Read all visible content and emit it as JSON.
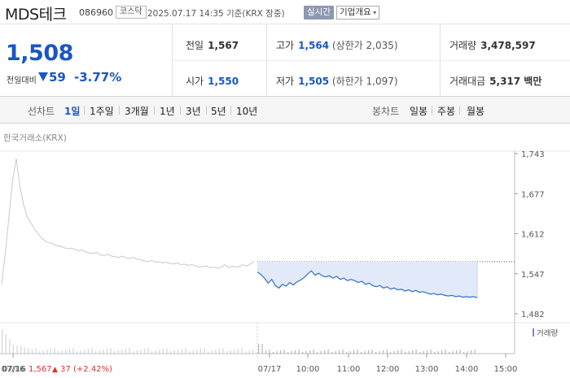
{
  "header": {
    "name": "MDS테크",
    "code": "086960",
    "market": "코스닥",
    "timestamp": "2025.07.17 14:35 기준(KRX 장중)",
    "realtime_label": "실시간",
    "company_label": "기업개요"
  },
  "price": {
    "current": "1,508",
    "diff_label": "전일대비",
    "diff": "59",
    "rate": "-3.77%"
  },
  "stats": {
    "prev_label": "전일",
    "prev": "1,567",
    "high_label": "고가",
    "high": "1,564",
    "high_sub": "(상한가 2,035)",
    "volume_label": "거래량",
    "volume": "3,478,597",
    "open_label": "시가",
    "open": "1,550",
    "low_label": "저가",
    "low": "1,505",
    "low_sub": "(하한가 1,097)",
    "amount_label": "거래대금",
    "amount": "5,317 백만"
  },
  "period_bar": {
    "line_label": "선차트",
    "line_items": [
      "1일",
      "1주일",
      "3개월",
      "1년",
      "3년",
      "5년",
      "10년"
    ],
    "active": "1일",
    "candle_label": "봉차트",
    "candle_items": [
      "일봉",
      "주봉",
      "월봉"
    ]
  },
  "chart_data": {
    "type": "line",
    "source": "한국거래소(KRX)",
    "y_ticks": [
      "1,743",
      "1,677",
      "1,612",
      "1,547",
      "1,482"
    ],
    "ylim": [
      1482,
      1743
    ],
    "x_ticks": [
      "07/16",
      "07/17",
      "10:00",
      "11:00",
      "12:00",
      "13:00",
      "14:00",
      "15:00"
    ],
    "prev_close": 1567,
    "volume_label": "거래량",
    "prev_day_summary": {
      "date": "07/16",
      "close": "1,567",
      "change": "37",
      "rate": "(+2.42%)"
    },
    "series": [
      {
        "key": "prev_day",
        "color": "#c8c8c8",
        "values": [
          1530,
          1580,
          1640,
          1700,
          1735,
          1690,
          1660,
          1640,
          1630,
          1620,
          1612,
          1605,
          1600,
          1598,
          1596,
          1593,
          1592,
          1590,
          1588,
          1589,
          1587,
          1585,
          1586,
          1583,
          1581,
          1580,
          1582,
          1578,
          1577,
          1579,
          1576,
          1575,
          1574,
          1576,
          1573,
          1572,
          1574,
          1571,
          1570,
          1568,
          1567,
          1569,
          1566,
          1567,
          1565,
          1566,
          1564,
          1563,
          1565,
          1562,
          1563,
          1561,
          1562,
          1560,
          1558,
          1559,
          1560,
          1557,
          1558,
          1556,
          1558,
          1562,
          1557,
          1560,
          1558,
          1559,
          1562,
          1560,
          1563,
          1567
        ]
      },
      {
        "key": "today",
        "color": "#2f6fc6",
        "fill": "#e2e9f8",
        "values": [
          1550,
          1546,
          1540,
          1532,
          1538,
          1528,
          1524,
          1530,
          1527,
          1533,
          1529,
          1534,
          1537,
          1541,
          1547,
          1552,
          1545,
          1548,
          1544,
          1542,
          1544,
          1540,
          1543,
          1538,
          1540,
          1536,
          1538,
          1536,
          1533,
          1535,
          1530,
          1532,
          1528,
          1526,
          1528,
          1524,
          1526,
          1522,
          1524,
          1521,
          1522,
          1519,
          1521,
          1518,
          1520,
          1517,
          1518,
          1516,
          1514,
          1515,
          1513,
          1514,
          1512,
          1511,
          1512,
          1510,
          1511,
          1509,
          1510,
          1509,
          1510,
          1508
        ]
      }
    ]
  }
}
